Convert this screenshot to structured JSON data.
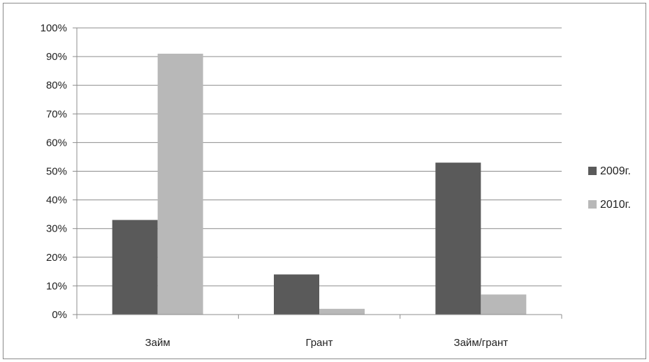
{
  "chart_data": {
    "type": "bar",
    "categories": [
      "Займ",
      "Грант",
      "Займ/грант"
    ],
    "series": [
      {
        "name": "2009г.",
        "values": [
          33,
          14,
          53
        ],
        "color": "#5a5a5a"
      },
      {
        "name": "2010г.",
        "values": [
          91,
          2,
          7
        ],
        "color": "#b8b8b8"
      }
    ],
    "y_ticks": [
      "0%",
      "10%",
      "20%",
      "30%",
      "40%",
      "50%",
      "60%",
      "70%",
      "80%",
      "90%",
      "100%"
    ],
    "ylim": [
      0,
      100
    ],
    "y_unit": "%",
    "grid": true,
    "legend": "right"
  }
}
